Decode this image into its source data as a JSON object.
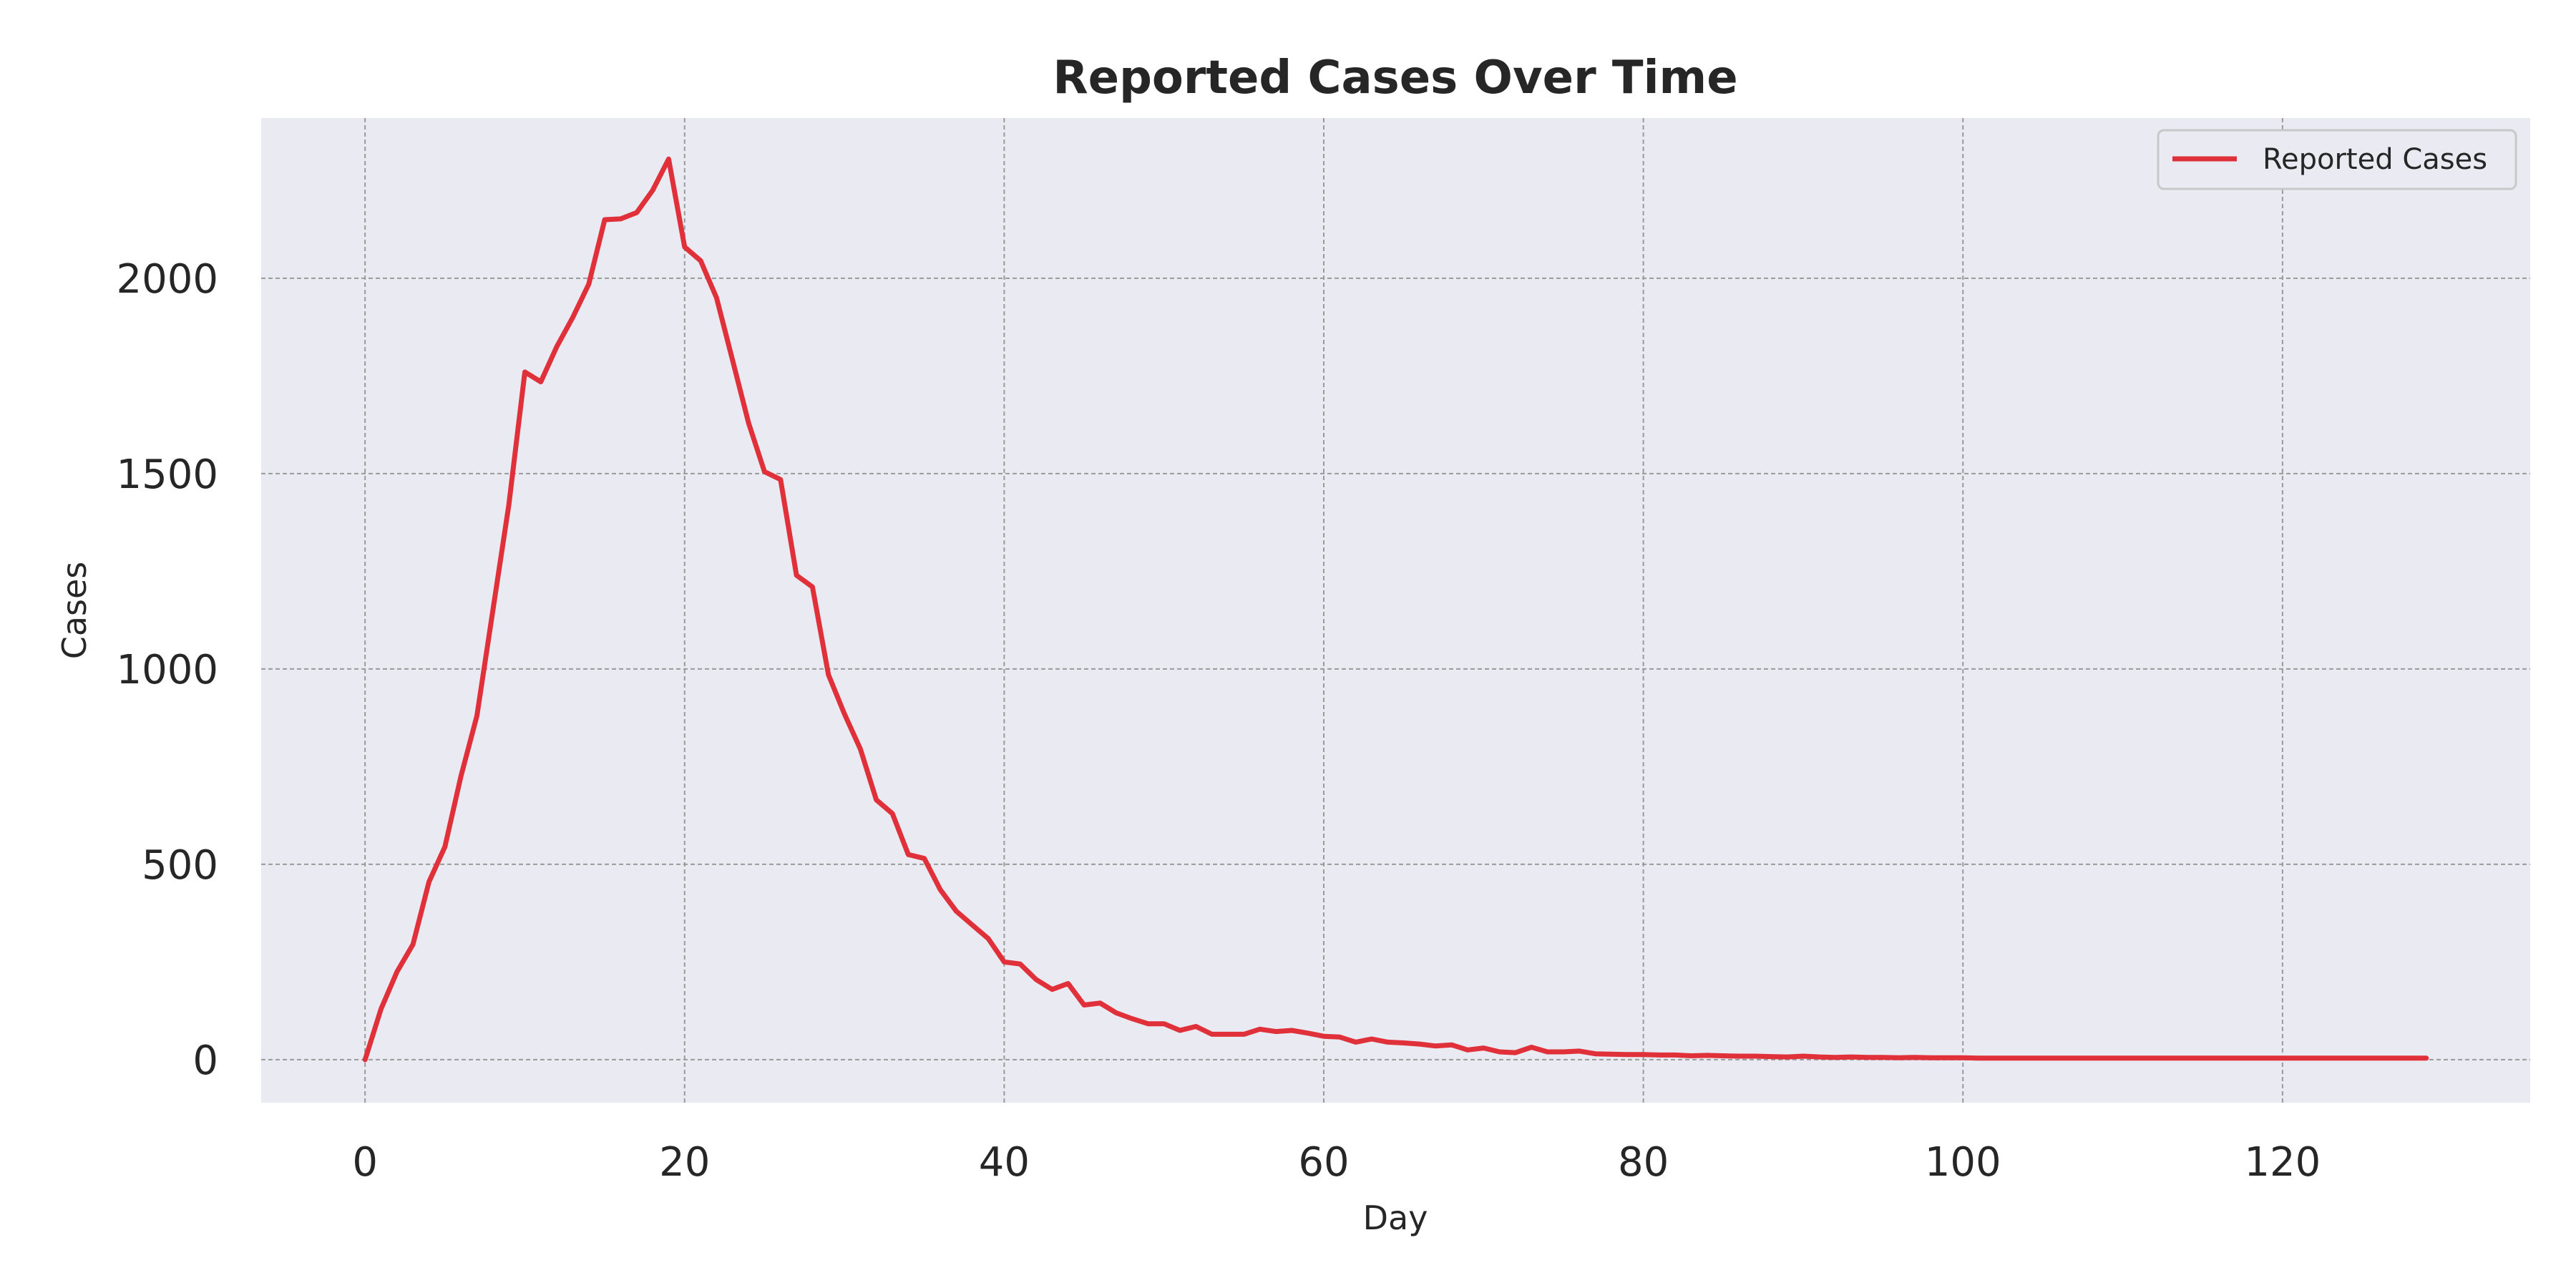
{
  "chart_data": {
    "type": "line",
    "title": "Reported Cases Over Time",
    "xlabel": "Day",
    "ylabel": "Cases",
    "xlim": [
      -6.5,
      135.5
    ],
    "ylim": [
      -110,
      2410
    ],
    "xticks": [
      0,
      20,
      40,
      60,
      80,
      100,
      120
    ],
    "yticks": [
      0,
      500,
      1000,
      1500,
      2000
    ],
    "grid": true,
    "legend_position": "top-right",
    "series": [
      {
        "name": "Reported Cases",
        "color": "#e0313b",
        "x": [
          0,
          1,
          2,
          3,
          4,
          5,
          6,
          7,
          8,
          9,
          10,
          11,
          12,
          13,
          14,
          15,
          16,
          17,
          18,
          19,
          20,
          21,
          22,
          23,
          24,
          25,
          26,
          27,
          28,
          29,
          30,
          31,
          32,
          33,
          34,
          35,
          36,
          37,
          38,
          39,
          40,
          41,
          42,
          43,
          44,
          45,
          46,
          47,
          48,
          49,
          50,
          51,
          52,
          53,
          54,
          55,
          56,
          57,
          58,
          59,
          60,
          61,
          62,
          63,
          64,
          65,
          66,
          67,
          68,
          69,
          70,
          71,
          72,
          73,
          74,
          75,
          76,
          77,
          78,
          79,
          80,
          81,
          82,
          83,
          84,
          85,
          86,
          87,
          88,
          89,
          90,
          91,
          92,
          93,
          94,
          95,
          96,
          97,
          98,
          99,
          100,
          101,
          102,
          103,
          104,
          105,
          106,
          107,
          108,
          109,
          110,
          111,
          112,
          113,
          114,
          115,
          116,
          117,
          118,
          119,
          120,
          121,
          122,
          123,
          124,
          125,
          126,
          127,
          128,
          129
        ],
        "values": [
          0,
          130,
          225,
          295,
          455,
          545,
          725,
          880,
          1150,
          1420,
          1760,
          1735,
          1825,
          1900,
          1985,
          2150,
          2152,
          2168,
          2225,
          2305,
          2080,
          2045,
          1950,
          1790,
          1630,
          1505,
          1485,
          1240,
          1210,
          985,
          885,
          795,
          665,
          630,
          525,
          515,
          435,
          380,
          345,
          310,
          250,
          245,
          205,
          180,
          195,
          140,
          145,
          120,
          105,
          92,
          92,
          75,
          85,
          65,
          65,
          65,
          78,
          72,
          75,
          68,
          60,
          58,
          45,
          53,
          45,
          43,
          40,
          35,
          38,
          25,
          30,
          20,
          18,
          32,
          20,
          20,
          22,
          15,
          14,
          13,
          13,
          12,
          12,
          10,
          11,
          10,
          9,
          9,
          8,
          7,
          9,
          7,
          6,
          7,
          6,
          6,
          5,
          6,
          5,
          5,
          5,
          4,
          4,
          4,
          4,
          4,
          4,
          4,
          4,
          4,
          4,
          4,
          4,
          4,
          4,
          4,
          4,
          4,
          4,
          4,
          4,
          4,
          4,
          4,
          4,
          4,
          4,
          4,
          4,
          4
        ]
      }
    ]
  }
}
